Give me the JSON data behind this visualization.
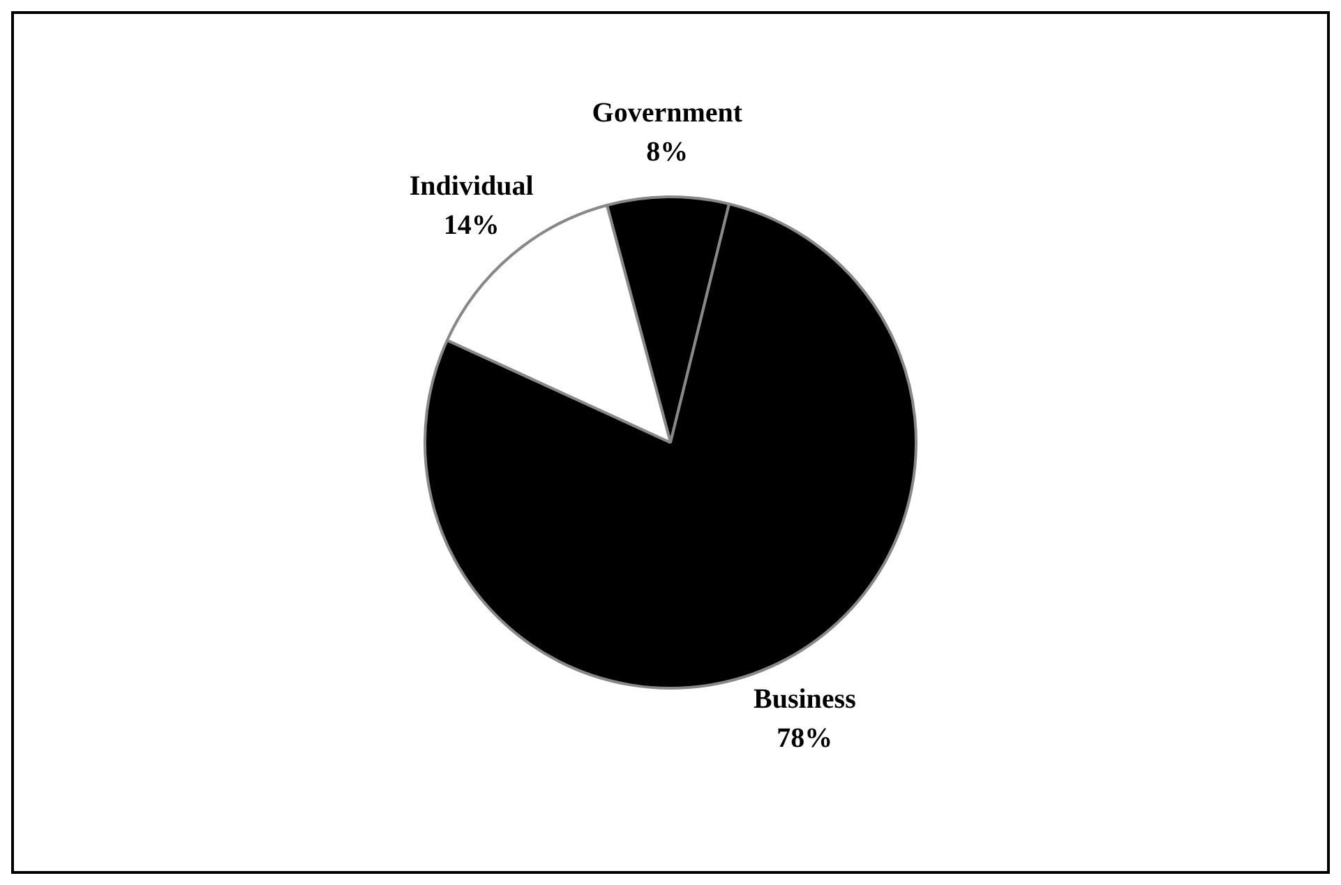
{
  "chart_data": {
    "type": "pie",
    "categories": [
      "Government",
      "Business",
      "Individual"
    ],
    "values": [
      8,
      78,
      14
    ],
    "value_labels": [
      "8%",
      "78%",
      "14%"
    ],
    "colors": [
      "#000000",
      "#000000",
      "#ffffff"
    ],
    "legend": false
  }
}
